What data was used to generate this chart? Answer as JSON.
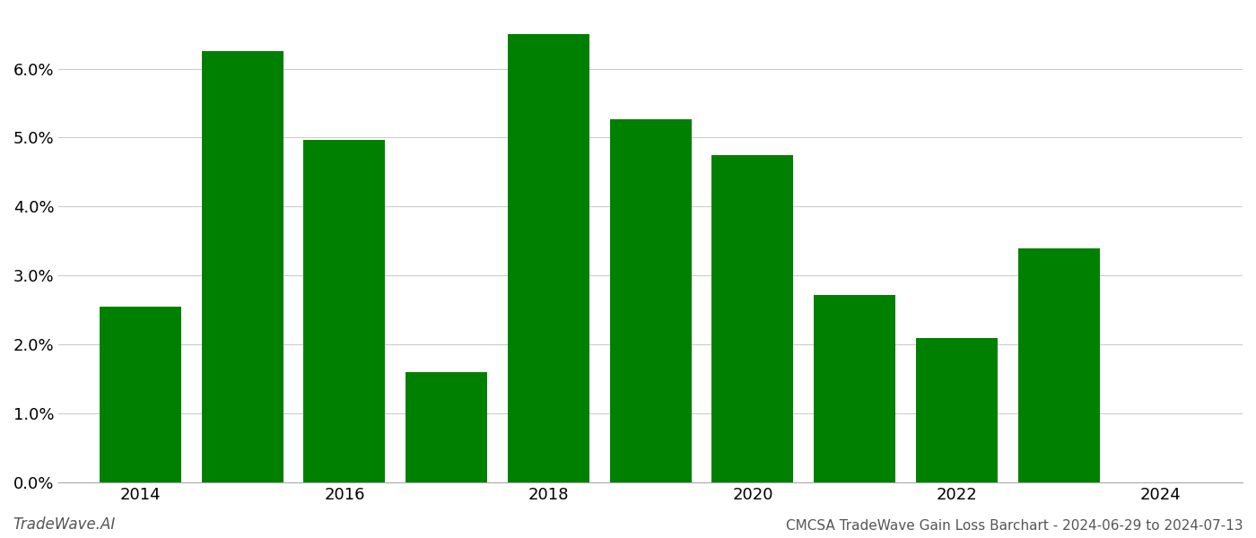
{
  "years": [
    2014,
    2015,
    2016,
    2017,
    2018,
    2019,
    2020,
    2021,
    2022,
    2023
  ],
  "values": [
    0.0255,
    0.0625,
    0.0497,
    0.016,
    0.065,
    0.0527,
    0.0475,
    0.0272,
    0.021,
    0.034
  ],
  "bar_color": "#008000",
  "background_color": "#ffffff",
  "grid_color": "#cccccc",
  "title": "CMCSA TradeWave Gain Loss Barchart - 2024-06-29 to 2024-07-13",
  "watermark_left": "TradeWave.AI",
  "ylim": [
    0,
    0.068
  ],
  "yticks": [
    0.0,
    0.01,
    0.02,
    0.03,
    0.04,
    0.05,
    0.06
  ],
  "xticks": [
    2014,
    2016,
    2018,
    2020,
    2022,
    2024
  ],
  "xlim_left": 2013.2,
  "xlim_right": 2024.8,
  "xlabel_fontsize": 13,
  "ylabel_fontsize": 13,
  "title_fontsize": 11,
  "watermark_fontsize": 12,
  "bar_width": 0.8
}
